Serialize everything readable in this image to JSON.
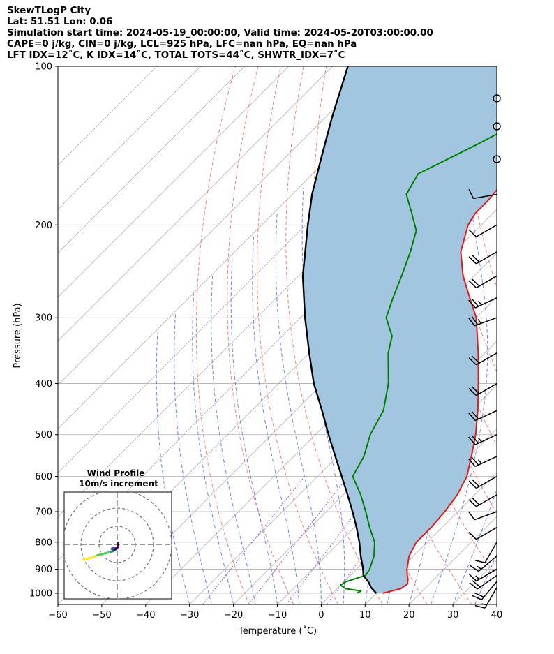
{
  "header": {
    "line1": "SkewTLogP City",
    "line2": "Lat: 51.51   Lon: 0.06",
    "line3": "Simulation start time: 2024-05-19_00:00:00, Valid time: 2024-05-20T03:00:00.00",
    "line4": "CAPE=0 j/kg, CIN=0 j/kg, LCL=925 hPa, LFC=nan hPa, EQ=nan hPa",
    "line5": "LFT IDX=12˚C, K IDX=14˚C, TOTAL TOTS=44˚C, SHWTR_IDX=7˚C"
  },
  "chart_data": {
    "type": "skew-t log-p",
    "xlabel": "Temperature (˚C)",
    "ylabel": "Pressure (hPa)",
    "xlim": [
      -60,
      40
    ],
    "ylim": [
      1050,
      100
    ],
    "y_scale": "log",
    "x_ticks": [
      -60,
      -50,
      -40,
      -30,
      -20,
      -10,
      0,
      10,
      20,
      30,
      40
    ],
    "y_ticks": [
      100,
      200,
      300,
      400,
      500,
      600,
      700,
      800,
      900,
      1000
    ],
    "grid": true,
    "colors": {
      "temperature": "#e41a1c",
      "dewpoint": "#008000",
      "parcel": "#000000",
      "cape_fill": "#a3c6e0",
      "dry_adiabat": "#ff6b6b",
      "moist_adiabat": "#4a5cff",
      "mixing_ratio": "#9b5fd0",
      "isotherm_grid": "#b0b0b0"
    },
    "series": [
      {
        "key": "temperature",
        "points": [
          [
            1000,
            11.5
          ],
          [
            980,
            14.5
          ],
          [
            960,
            15.0
          ],
          [
            940,
            14.0
          ],
          [
            925,
            13.0
          ],
          [
            900,
            11.5
          ],
          [
            850,
            9.0
          ],
          [
            800,
            7.5
          ],
          [
            750,
            7.5
          ],
          [
            700,
            7.0
          ],
          [
            650,
            6.0
          ],
          [
            600,
            4.0
          ],
          [
            550,
            0.5
          ],
          [
            500,
            -3.5
          ],
          [
            450,
            -8.5
          ],
          [
            400,
            -14.5
          ],
          [
            350,
            -21.5
          ],
          [
            300,
            -30.0
          ],
          [
            275,
            -36.0
          ],
          [
            250,
            -42.5
          ],
          [
            225,
            -48.5
          ],
          [
            200,
            -53.0
          ],
          [
            190,
            -54.0
          ],
          [
            180,
            -54.0
          ],
          [
            170,
            -54.5
          ],
          [
            160,
            -55.0
          ],
          [
            150,
            -57.0
          ],
          [
            140,
            -61.0
          ],
          [
            130,
            -64.5
          ],
          [
            120,
            -67.5
          ],
          [
            110,
            -70.0
          ],
          [
            100,
            -72.0
          ]
        ]
      },
      {
        "key": "dewpoint",
        "points": [
          [
            1000,
            5.5
          ],
          [
            990,
            6.0
          ],
          [
            980,
            2.0
          ],
          [
            965,
            0.0
          ],
          [
            950,
            0.5
          ],
          [
            925,
            3.5
          ],
          [
            900,
            3.0
          ],
          [
            850,
            1.0
          ],
          [
            800,
            -2.0
          ],
          [
            750,
            -6.5
          ],
          [
            700,
            -11.0
          ],
          [
            650,
            -16.0
          ],
          [
            600,
            -22.0
          ],
          [
            550,
            -24.0
          ],
          [
            500,
            -27.5
          ],
          [
            450,
            -30.0
          ],
          [
            400,
            -35.0
          ],
          [
            350,
            -42.0
          ],
          [
            325,
            -45.0
          ],
          [
            300,
            -50.5
          ],
          [
            275,
            -53.5
          ],
          [
            250,
            -56.5
          ],
          [
            225,
            -60.0
          ],
          [
            205,
            -63.5
          ],
          [
            190,
            -68.5
          ],
          [
            175,
            -74.0
          ],
          [
            160,
            -76.0
          ],
          [
            140,
            -69.0
          ],
          [
            120,
            -62.0
          ],
          [
            100,
            -55.5
          ]
        ]
      },
      {
        "key": "parcel",
        "points": [
          [
            1000,
            10.0
          ],
          [
            975,
            7.5
          ],
          [
            950,
            5.5
          ],
          [
            925,
            3.0
          ],
          [
            900,
            1.5
          ],
          [
            850,
            -2.0
          ],
          [
            800,
            -5.5
          ],
          [
            750,
            -9.5
          ],
          [
            700,
            -14.0
          ],
          [
            650,
            -19.0
          ],
          [
            600,
            -24.5
          ],
          [
            550,
            -30.5
          ],
          [
            500,
            -37.0
          ],
          [
            450,
            -44.0
          ],
          [
            400,
            -52.0
          ],
          [
            350,
            -60.0
          ],
          [
            300,
            -69.0
          ],
          [
            250,
            -79.0
          ],
          [
            200,
            -89.5
          ],
          [
            175,
            -95.5
          ],
          [
            150,
            -101.5
          ],
          [
            125,
            -108.5
          ],
          [
            100,
            -116.5
          ]
        ]
      }
    ],
    "wind_barbs": [
      {
        "pressure": 975,
        "speed_kt": 15,
        "direction_deg": 210
      },
      {
        "pressure": 950,
        "speed_kt": 20,
        "direction_deg": 220
      },
      {
        "pressure": 925,
        "speed_kt": 20,
        "direction_deg": 235
      },
      {
        "pressure": 900,
        "speed_kt": 15,
        "direction_deg": 240
      },
      {
        "pressure": 850,
        "speed_kt": 15,
        "direction_deg": 230
      },
      {
        "pressure": 800,
        "speed_kt": 10,
        "direction_deg": 210
      },
      {
        "pressure": 750,
        "speed_kt": 10,
        "direction_deg": 240
      },
      {
        "pressure": 700,
        "speed_kt": 10,
        "direction_deg": 250
      },
      {
        "pressure": 650,
        "speed_kt": 20,
        "direction_deg": 240
      },
      {
        "pressure": 600,
        "speed_kt": 20,
        "direction_deg": 240
      },
      {
        "pressure": 550,
        "speed_kt": 25,
        "direction_deg": 245
      },
      {
        "pressure": 500,
        "speed_kt": 25,
        "direction_deg": 245
      },
      {
        "pressure": 450,
        "speed_kt": 20,
        "direction_deg": 245
      },
      {
        "pressure": 400,
        "speed_kt": 20,
        "direction_deg": 240
      },
      {
        "pressure": 350,
        "speed_kt": 20,
        "direction_deg": 240
      },
      {
        "pressure": 300,
        "speed_kt": 25,
        "direction_deg": 250
      },
      {
        "pressure": 275,
        "speed_kt": 25,
        "direction_deg": 245
      },
      {
        "pressure": 250,
        "speed_kt": 20,
        "direction_deg": 240
      },
      {
        "pressure": 225,
        "speed_kt": 20,
        "direction_deg": 240
      },
      {
        "pressure": 200,
        "speed_kt": 10,
        "direction_deg": 240
      },
      {
        "pressure": 175,
        "speed_kt": 10,
        "direction_deg": 260
      },
      {
        "pressure": 150,
        "speed_kt": 0,
        "direction_deg": 0
      },
      {
        "pressure": 130,
        "speed_kt": 0,
        "direction_deg": 0
      },
      {
        "pressure": 115,
        "speed_kt": 0,
        "direction_deg": 0
      }
    ],
    "hodograph": {
      "title": "Wind Profile",
      "subtitle": "10m/s increment",
      "ring_increment_ms": 10,
      "rings": [
        1,
        2,
        3
      ],
      "colormap": [
        "#440154",
        "#3b528b",
        "#21908d",
        "#5dc963",
        "#fde725"
      ],
      "points": [
        [
          -18.5,
          -8.5
        ],
        [
          -17.0,
          -8.0
        ],
        [
          -15.0,
          -7.5
        ],
        [
          -13.0,
          -7.0
        ],
        [
          -11.0,
          -6.0
        ],
        [
          -9.0,
          -5.5
        ],
        [
          -7.0,
          -5.0
        ],
        [
          -5.0,
          -4.5
        ],
        [
          -3.5,
          -4.0
        ],
        [
          -2.5,
          -3.8
        ],
        [
          -1.5,
          -3.2
        ],
        [
          -0.5,
          -2.5
        ],
        [
          -0.8,
          -2.0
        ],
        [
          -2.5,
          -1.8
        ],
        [
          -3.0,
          -2.5
        ],
        [
          -1.5,
          -3.0
        ],
        [
          0.0,
          -2.0
        ],
        [
          0.5,
          -0.5
        ],
        [
          0.5,
          0.8
        ]
      ]
    }
  }
}
